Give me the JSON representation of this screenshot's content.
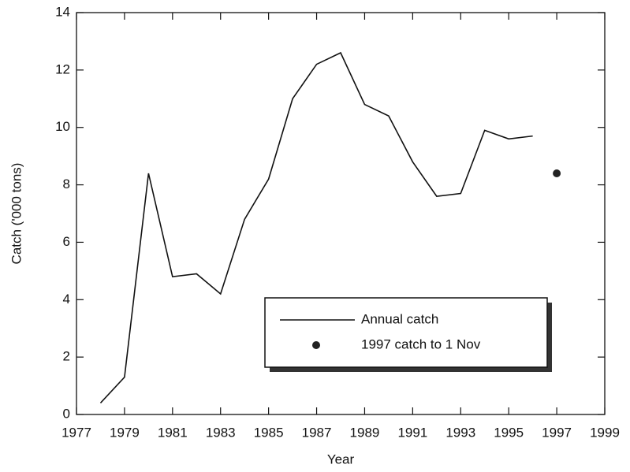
{
  "chart_data": {
    "type": "line",
    "xlabel": "Year",
    "ylabel": "Catch ('000 tons)",
    "xlim": [
      1977,
      1999
    ],
    "xticks": [
      1977,
      1979,
      1981,
      1983,
      1985,
      1987,
      1989,
      1991,
      1993,
      1995,
      1997,
      1999
    ],
    "ylim": [
      0,
      14
    ],
    "yticks": [
      0,
      2,
      4,
      6,
      8,
      10,
      12,
      14
    ],
    "legend": "lower right",
    "series": [
      {
        "name": "Annual catch",
        "type": "line",
        "color": "#111111",
        "x": [
          1978,
          1979,
          1980,
          1981,
          1982,
          1983,
          1984,
          1985,
          1986,
          1987,
          1988,
          1989,
          1990,
          1991,
          1992,
          1993,
          1994,
          1995,
          1996
        ],
        "values": [
          0.4,
          1.3,
          8.4,
          4.8,
          4.9,
          4.2,
          6.8,
          8.2,
          11.0,
          12.2,
          12.6,
          10.8,
          10.4,
          8.8,
          7.6,
          7.7,
          9.9,
          9.6,
          9.7
        ]
      },
      {
        "name": "1997 catch to 1 Nov",
        "type": "scatter",
        "color": "#222222",
        "x": [
          1997
        ],
        "values": [
          8.4
        ]
      }
    ]
  }
}
